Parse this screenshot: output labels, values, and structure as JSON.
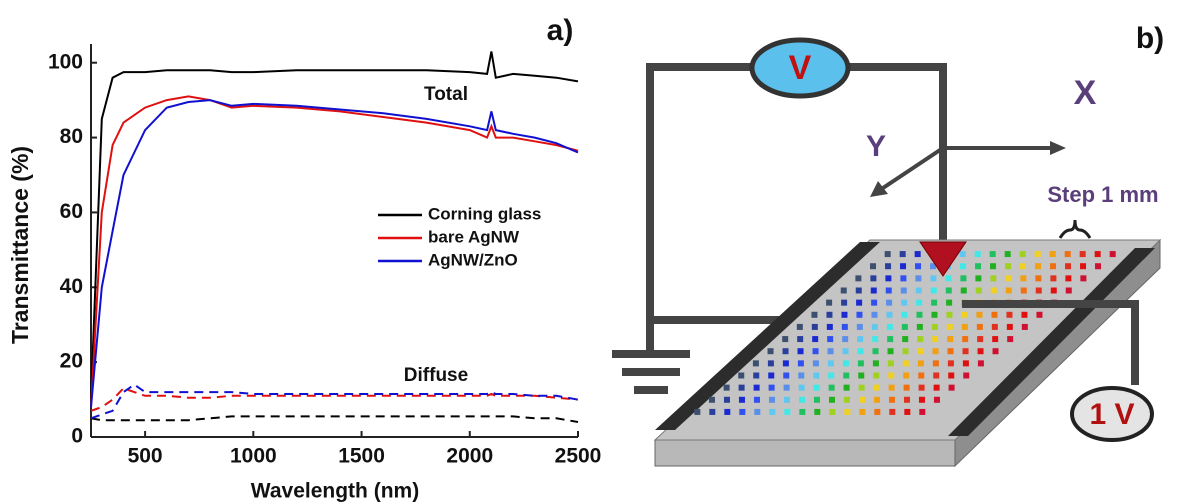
{
  "chart_data": {
    "type": "line",
    "panel_label": "a)",
    "x_label": "Wavelength (nm)",
    "y_label": "Transmittance (%)",
    "annotations": [
      "Total",
      "Diffuse"
    ],
    "x": [
      250,
      300,
      350,
      400,
      450,
      500,
      600,
      700,
      800,
      900,
      1000,
      1200,
      1400,
      1600,
      1800,
      2000,
      2080,
      2100,
      2120,
      2200,
      2300,
      2400,
      2500
    ],
    "series": [
      {
        "name": "Corning glass",
        "color": "#000000",
        "values": [
          10,
          85,
          96,
          97.5,
          97.5,
          97.5,
          98,
          98,
          98,
          97.5,
          97.5,
          98,
          98,
          98,
          98,
          97.5,
          97,
          103,
          96,
          97,
          96.5,
          96,
          95
        ],
        "diffuse": [
          5,
          4.5,
          4.5,
          4.5,
          4.5,
          4.5,
          4.5,
          4.5,
          5,
          5.5,
          5.5,
          5.5,
          5.5,
          5.5,
          5.5,
          5.5,
          5.5,
          5.5,
          5.5,
          5.5,
          5,
          5,
          4
        ]
      },
      {
        "name": "bare AgNW",
        "color": "#e01010",
        "values": [
          8,
          60,
          78,
          84,
          86,
          88,
          90,
          91,
          90,
          88,
          88.5,
          88,
          87,
          85.5,
          84,
          82,
          80,
          83,
          80,
          80,
          79,
          78,
          76.5
        ],
        "diffuse": [
          7,
          8,
          10,
          13,
          12,
          11,
          11,
          10.5,
          10.5,
          11,
          11,
          11,
          11,
          11,
          11,
          11,
          11,
          11.5,
          11,
          11,
          11,
          10.5,
          10
        ]
      },
      {
        "name": "AgNW/ZnO",
        "color": "#1010d0",
        "values": [
          8,
          40,
          55,
          70,
          76,
          82,
          88,
          89.5,
          90,
          88.5,
          89,
          88.5,
          87.5,
          86.5,
          85,
          83,
          82,
          87,
          82,
          81,
          80,
          78.5,
          76
        ],
        "diffuse": [
          5,
          6,
          7,
          12,
          14,
          12,
          12,
          12,
          12,
          12,
          11.5,
          11.5,
          11.5,
          11.5,
          11.5,
          11.5,
          11.5,
          12,
          11.5,
          11.5,
          11,
          11,
          10
        ]
      }
    ],
    "xlim": [
      250,
      2500
    ],
    "xticks": [
      500,
      1000,
      1500,
      2000,
      2500
    ],
    "ylim": [
      0,
      105
    ],
    "yticks": [
      0,
      20,
      40,
      60,
      80,
      100
    ]
  },
  "diagram": {
    "panel_label": "b)",
    "meter": "V",
    "x_axis": "X",
    "y_axis": "Y",
    "step": "Step 1 mm",
    "source": "1 V"
  }
}
